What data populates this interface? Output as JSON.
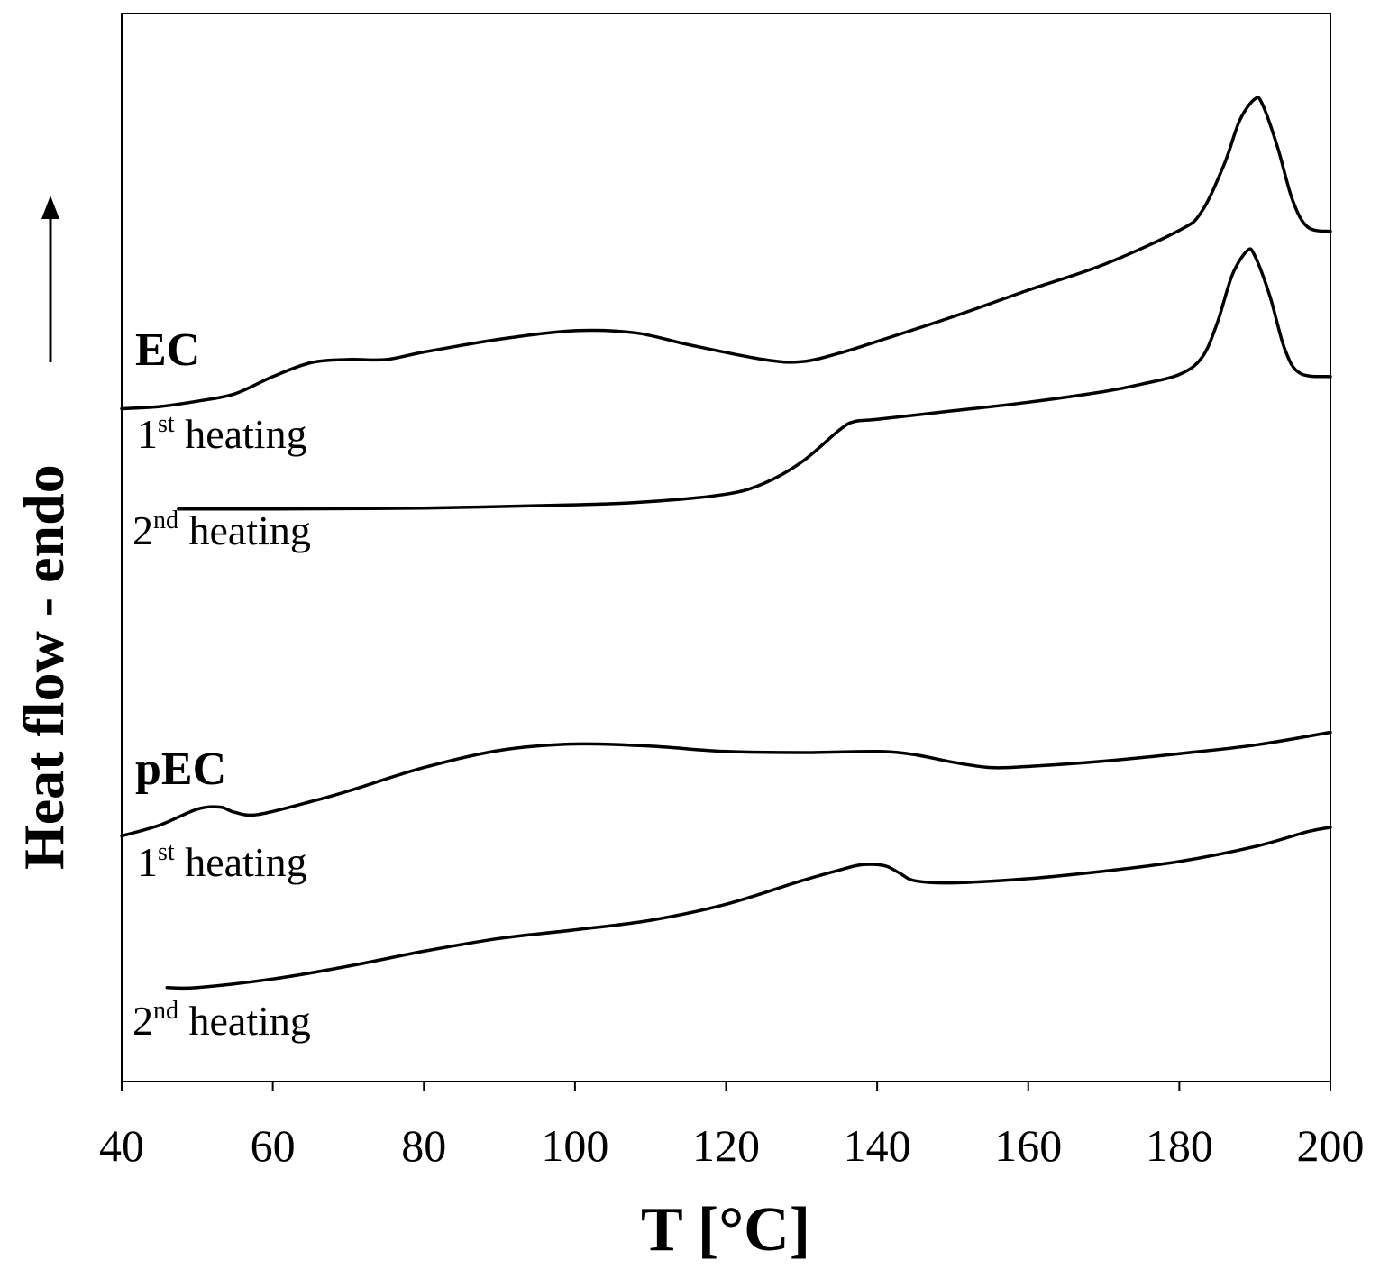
{
  "chart_data": {
    "type": "line",
    "xlabel": "T [°C]",
    "ylabel": "Heat flow - endo",
    "xlim": [
      40,
      200
    ],
    "ylim": [
      0,
      100
    ],
    "xticks": [
      "40",
      "60",
      "80",
      "100",
      "120",
      "140",
      "160",
      "180",
      "200"
    ],
    "y_ticks_shown": false,
    "grid": false,
    "groups": [
      {
        "name": "EC"
      },
      {
        "name": "pEC"
      }
    ],
    "series": [
      {
        "name": "EC 1st heating",
        "group": "EC",
        "label_main": "1",
        "label_sup": "st",
        "label_rest": " heating",
        "points": [
          [
            40,
            63.0
          ],
          [
            45,
            63.2
          ],
          [
            50,
            63.7
          ],
          [
            55,
            64.4
          ],
          [
            60,
            66.0
          ],
          [
            65,
            67.3
          ],
          [
            70,
            67.6
          ],
          [
            75,
            67.6
          ],
          [
            80,
            68.3
          ],
          [
            90,
            69.5
          ],
          [
            100,
            70.3
          ],
          [
            108,
            70.1
          ],
          [
            115,
            69.0
          ],
          [
            125,
            67.6
          ],
          [
            130,
            67.4
          ],
          [
            135,
            68.2
          ],
          [
            140,
            69.3
          ],
          [
            150,
            71.6
          ],
          [
            160,
            74.1
          ],
          [
            170,
            76.5
          ],
          [
            180,
            79.7
          ],
          [
            183,
            81.5
          ],
          [
            186,
            86.0
          ],
          [
            188,
            90.0
          ],
          [
            190,
            92.0
          ],
          [
            191,
            91.5
          ],
          [
            193,
            87.5
          ],
          [
            195,
            82.5
          ],
          [
            197,
            80.0
          ],
          [
            200,
            79.6
          ]
        ]
      },
      {
        "name": "EC 2nd heating",
        "group": "EC",
        "label_main": "2",
        "label_sup": "nd",
        "label_rest": " heating",
        "points": [
          [
            47.5,
            53.6
          ],
          [
            60,
            53.6
          ],
          [
            80,
            53.7
          ],
          [
            100,
            54.0
          ],
          [
            110,
            54.3
          ],
          [
            120,
            55.0
          ],
          [
            125,
            56.0
          ],
          [
            130,
            58.0
          ],
          [
            135,
            61.0
          ],
          [
            137,
            61.8
          ],
          [
            140,
            62.0
          ],
          [
            150,
            62.8
          ],
          [
            160,
            63.6
          ],
          [
            170,
            64.6
          ],
          [
            175,
            65.3
          ],
          [
            180,
            66.2
          ],
          [
            183,
            67.8
          ],
          [
            185,
            71.0
          ],
          [
            187,
            75.5
          ],
          [
            189,
            77.8
          ],
          [
            190,
            77.3
          ],
          [
            192,
            73.5
          ],
          [
            194,
            68.5
          ],
          [
            196,
            66.3
          ],
          [
            200,
            66.0
          ]
        ]
      },
      {
        "name": "pEC 1st heating",
        "group": "pEC",
        "label_main": "1",
        "label_sup": "st",
        "label_rest": " heating",
        "points": [
          [
            40,
            23.0
          ],
          [
            45,
            24.0
          ],
          [
            50,
            25.5
          ],
          [
            53,
            25.7
          ],
          [
            55,
            25.2
          ],
          [
            58,
            25.0
          ],
          [
            65,
            26.2
          ],
          [
            70,
            27.2
          ],
          [
            80,
            29.4
          ],
          [
            90,
            31.0
          ],
          [
            100,
            31.6
          ],
          [
            110,
            31.4
          ],
          [
            120,
            30.9
          ],
          [
            130,
            30.8
          ],
          [
            140,
            30.9
          ],
          [
            145,
            30.6
          ],
          [
            150,
            29.9
          ],
          [
            155,
            29.4
          ],
          [
            160,
            29.5
          ],
          [
            170,
            30.0
          ],
          [
            180,
            30.7
          ],
          [
            190,
            31.5
          ],
          [
            200,
            32.7
          ]
        ]
      },
      {
        "name": "pEC 2nd heating",
        "group": "pEC",
        "label_main": "2",
        "label_sup": "nd",
        "label_rest": " heating",
        "points": [
          [
            46,
            8.8
          ],
          [
            50,
            8.8
          ],
          [
            60,
            9.6
          ],
          [
            70,
            10.8
          ],
          [
            80,
            12.2
          ],
          [
            90,
            13.4
          ],
          [
            100,
            14.2
          ],
          [
            110,
            15.1
          ],
          [
            120,
            16.6
          ],
          [
            130,
            18.8
          ],
          [
            135,
            19.8
          ],
          [
            138,
            20.3
          ],
          [
            141,
            20.2
          ],
          [
            143,
            19.5
          ],
          [
            145,
            18.8
          ],
          [
            150,
            18.6
          ],
          [
            160,
            19.0
          ],
          [
            170,
            19.7
          ],
          [
            180,
            20.6
          ],
          [
            190,
            22.0
          ],
          [
            197,
            23.4
          ],
          [
            200,
            23.8
          ]
        ]
      }
    ]
  },
  "arrow_icon": "up-arrow-icon"
}
